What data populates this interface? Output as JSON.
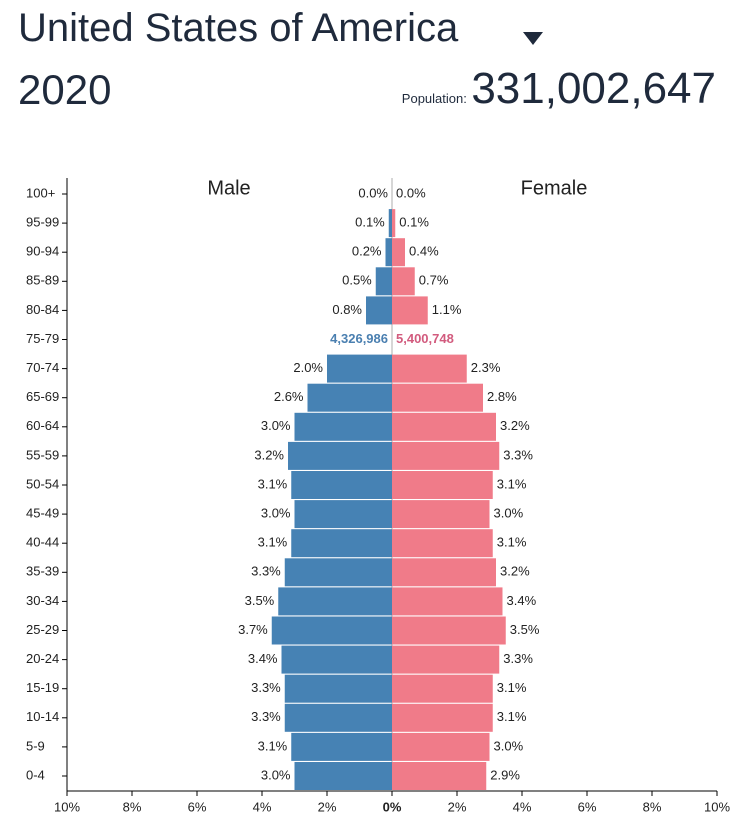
{
  "header": {
    "title": "United States of America",
    "year": "2020",
    "population_label": "Population:",
    "population": "331,002,647"
  },
  "chart_data": {
    "type": "pyramid",
    "categories": [
      "100+",
      "95-99",
      "90-94",
      "85-89",
      "80-84",
      "75-79",
      "70-74",
      "65-69",
      "60-64",
      "55-59",
      "50-54",
      "45-49",
      "40-44",
      "35-39",
      "30-34",
      "25-29",
      "20-24",
      "15-19",
      "10-14",
      "5-9",
      "0-4"
    ],
    "series": [
      {
        "name": "Male",
        "color": "#4682b4",
        "values": [
          0.0,
          0.1,
          0.2,
          0.5,
          0.8,
          null,
          2.0,
          2.6,
          3.0,
          3.2,
          3.1,
          3.0,
          3.1,
          3.3,
          3.5,
          3.7,
          3.4,
          3.3,
          3.3,
          3.1,
          3.0
        ],
        "value_labels": [
          "0.0%",
          "0.1%",
          "0.2%",
          "0.5%",
          "0.8%",
          null,
          "2.0%",
          "2.6%",
          "3.0%",
          "3.2%",
          "3.1%",
          "3.0%",
          "3.1%",
          "3.3%",
          "3.5%",
          "3.7%",
          "3.4%",
          "3.3%",
          "3.3%",
          "3.1%",
          "3.0%"
        ],
        "counts": [
          null,
          null,
          null,
          null,
          null,
          4326986,
          null,
          null,
          null,
          null,
          null,
          null,
          null,
          null,
          null,
          null,
          null,
          null,
          null,
          null,
          null
        ],
        "count_labels": [
          null,
          null,
          null,
          null,
          null,
          "4,326,986",
          null,
          null,
          null,
          null,
          null,
          null,
          null,
          null,
          null,
          null,
          null,
          null,
          null,
          null,
          null
        ],
        "count_color": "#4a7fb0"
      },
      {
        "name": "Female",
        "color": "#f07b89",
        "values": [
          0.0,
          0.1,
          0.4,
          0.7,
          1.1,
          null,
          2.3,
          2.8,
          3.2,
          3.3,
          3.1,
          3.0,
          3.1,
          3.2,
          3.4,
          3.5,
          3.3,
          3.1,
          3.1,
          3.0,
          2.9
        ],
        "value_labels": [
          "0.0%",
          "0.1%",
          "0.4%",
          "0.7%",
          "1.1%",
          null,
          "2.3%",
          "2.8%",
          "3.2%",
          "3.3%",
          "3.1%",
          "3.0%",
          "3.1%",
          "3.2%",
          "3.4%",
          "3.5%",
          "3.3%",
          "3.1%",
          "3.1%",
          "3.0%",
          "2.9%"
        ],
        "counts": [
          null,
          null,
          null,
          null,
          null,
          5400748,
          null,
          null,
          null,
          null,
          null,
          null,
          null,
          null,
          null,
          null,
          null,
          null,
          null,
          null,
          null
        ],
        "count_labels": [
          null,
          null,
          null,
          null,
          null,
          "5,400,748",
          null,
          null,
          null,
          null,
          null,
          null,
          null,
          null,
          null,
          null,
          null,
          null,
          null,
          null,
          null
        ],
        "count_color": "#d25b7e"
      }
    ],
    "xlim": [
      -10,
      10
    ],
    "xticks": [
      {
        "value": -10,
        "label": "10%"
      },
      {
        "value": -8,
        "label": "8%"
      },
      {
        "value": -6,
        "label": "6%"
      },
      {
        "value": -4,
        "label": "4%"
      },
      {
        "value": -2,
        "label": "2%"
      },
      {
        "value": 0,
        "label": "0%"
      },
      {
        "value": 2,
        "label": "2%"
      },
      {
        "value": 4,
        "label": "4%"
      },
      {
        "value": 6,
        "label": "6%"
      },
      {
        "value": 8,
        "label": "8%"
      },
      {
        "value": 10,
        "label": "10%"
      }
    ]
  }
}
